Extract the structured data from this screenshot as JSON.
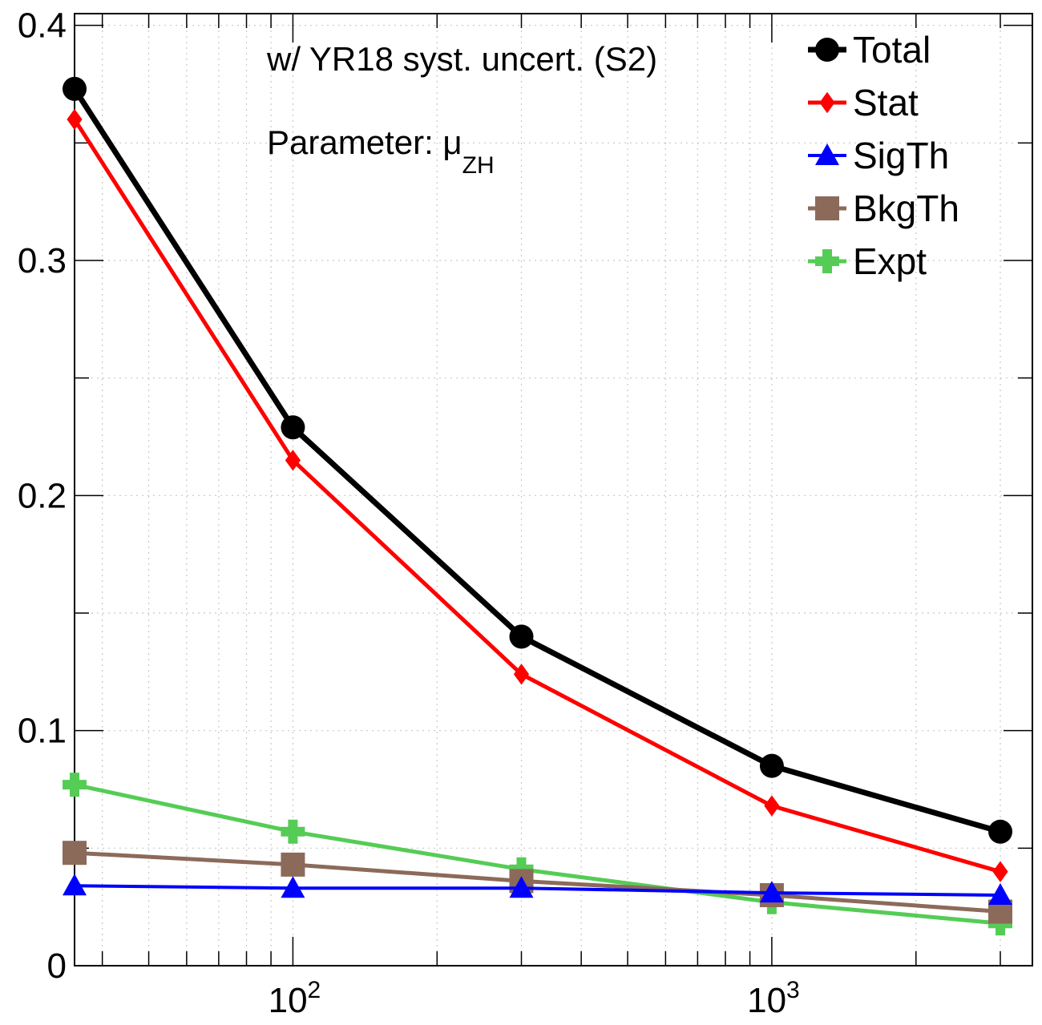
{
  "chart_data": {
    "type": "line",
    "x_scale": "log",
    "xlim": [
      35,
      3500
    ],
    "ylim": [
      0,
      0.405
    ],
    "x": [
      35,
      100,
      300,
      1000,
      3000
    ],
    "x_ticks": [
      {
        "value": 100,
        "base": "10",
        "exp": "2"
      },
      {
        "value": 1000,
        "base": "10",
        "exp": "3"
      }
    ],
    "y_ticks": [
      {
        "value": 0,
        "label": "0"
      },
      {
        "value": 0.1,
        "label": "0.1"
      },
      {
        "value": 0.2,
        "label": "0.2"
      },
      {
        "value": 0.3,
        "label": "0.3"
      },
      {
        "value": 0.4,
        "label": "0.4"
      }
    ],
    "grid": true,
    "legend_position": "top-right",
    "annotations": {
      "syst": "w/ YR18 syst. uncert. (S2)",
      "param_prefix": "Parameter: ",
      "param_symbol": "μ",
      "param_sub": "ZH"
    },
    "series": [
      {
        "name": "Total",
        "color": "#000000",
        "marker": "circle",
        "values": [
          0.373,
          0.229,
          0.14,
          0.085,
          0.057
        ]
      },
      {
        "name": "Stat",
        "color": "#ff0000",
        "marker": "diamond",
        "values": [
          0.36,
          0.215,
          0.124,
          0.068,
          0.04
        ]
      },
      {
        "name": "SigTh",
        "color": "#0000ff",
        "marker": "triangle",
        "values": [
          0.034,
          0.033,
          0.033,
          0.031,
          0.03
        ]
      },
      {
        "name": "BkgTh",
        "color": "#8c6a5a",
        "marker": "square",
        "values": [
          0.048,
          0.043,
          0.036,
          0.03,
          0.023
        ]
      },
      {
        "name": "Expt",
        "color": "#55cc55",
        "marker": "cross",
        "values": [
          0.077,
          0.057,
          0.041,
          0.027,
          0.018
        ]
      }
    ]
  }
}
